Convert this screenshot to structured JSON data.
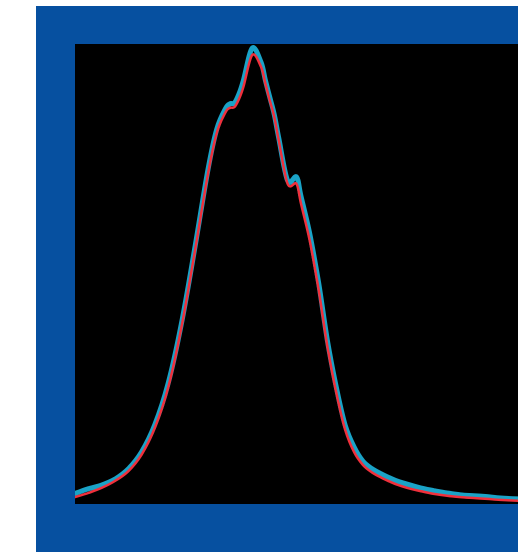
{
  "colors": {
    "frame": "#0650a0",
    "plot_background": "#000000",
    "measured_trace": "#1aa3c7",
    "fit_trace": "#f0303c"
  },
  "chart_data": {
    "type": "line",
    "title": "",
    "xlabel": "",
    "ylabel": "",
    "grid": false,
    "legend": "none",
    "xlim": [
      0,
      100
    ],
    "ylim": [
      0,
      100
    ],
    "x": [
      0,
      3,
      6,
      9,
      12,
      15,
      18,
      21,
      24,
      27,
      30,
      32,
      34,
      35,
      36,
      37,
      38,
      40,
      42,
      43,
      44,
      45,
      46,
      48,
      50,
      51,
      53,
      55,
      57,
      59,
      61,
      63,
      65,
      67,
      69,
      71,
      73,
      75,
      78,
      81,
      84,
      87,
      90,
      93,
      96,
      100
    ],
    "series": [
      {
        "color": "#1aa3c7",
        "values": [
          2.3,
          3.3,
          4.1,
          5.4,
          7.6,
          11.3,
          17.2,
          26.1,
          39.1,
          55.4,
          72.6,
          81.5,
          86.0,
          87.0,
          87.2,
          89.1,
          92.0,
          99.1,
          96.0,
          92.0,
          88.3,
          84.6,
          79.5,
          70.3,
          71.1,
          67.0,
          58.7,
          48.0,
          35.4,
          25.3,
          17.1,
          12.4,
          9.3,
          7.7,
          6.6,
          5.7,
          4.9,
          4.3,
          3.5,
          2.9,
          2.4,
          2.0,
          1.8,
          1.6,
          1.3,
          1.1
        ]
      },
      {
        "color": "#f0303c",
        "values": [
          1.5,
          2.4,
          3.5,
          5.0,
          7.1,
          10.7,
          16.5,
          25.2,
          38.3,
          54.6,
          71.7,
          80.7,
          85.2,
          86.1,
          86.3,
          88.0,
          90.6,
          97.6,
          95.0,
          91.3,
          87.6,
          84.1,
          79.0,
          69.6,
          69.6,
          65.4,
          57.2,
          46.5,
          34.1,
          24.1,
          16.1,
          11.3,
          8.5,
          6.9,
          5.8,
          4.9,
          4.1,
          3.5,
          2.8,
          2.2,
          1.8,
          1.5,
          1.3,
          1.1,
          0.9,
          0.7
        ]
      }
    ]
  }
}
